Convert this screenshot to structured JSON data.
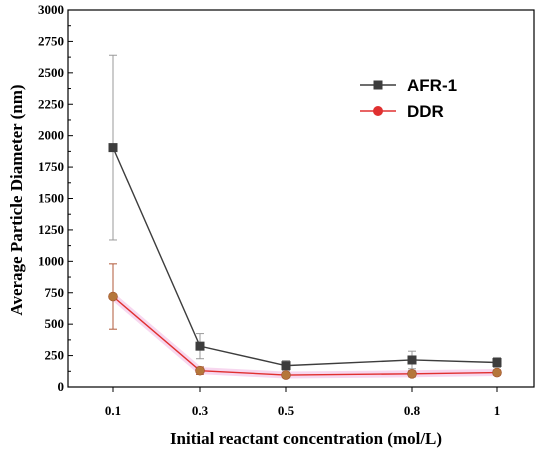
{
  "chart_data": {
    "type": "line",
    "title": "",
    "xlabel": "Initial reactant concentration (mol/L)",
    "ylabel": "Average Particle Diameter (nm)",
    "x_scale": "categorical",
    "categories": [
      "0.1",
      "0.3",
      "0.5",
      "0.8",
      "1"
    ],
    "x_values": [
      0.1,
      0.3,
      0.5,
      0.8,
      1.0
    ],
    "ylim": [
      0,
      3000
    ],
    "yticks": [
      0,
      250,
      500,
      750,
      1000,
      1250,
      1500,
      1750,
      2000,
      2250,
      2500,
      2750,
      3000
    ],
    "grid": false,
    "legend_position": "top-right",
    "series": [
      {
        "name": "AFR-1",
        "color": "#3d3d3d",
        "marker": "square",
        "values": [
          1905,
          325,
          170,
          215,
          195
        ],
        "errors": [
          735,
          100,
          40,
          70,
          40
        ]
      },
      {
        "name": "DDR",
        "color": "#e03030",
        "marker": "circle",
        "values": [
          720,
          130,
          95,
          105,
          115
        ],
        "errors": [
          260,
          30,
          20,
          25,
          20
        ]
      }
    ]
  }
}
